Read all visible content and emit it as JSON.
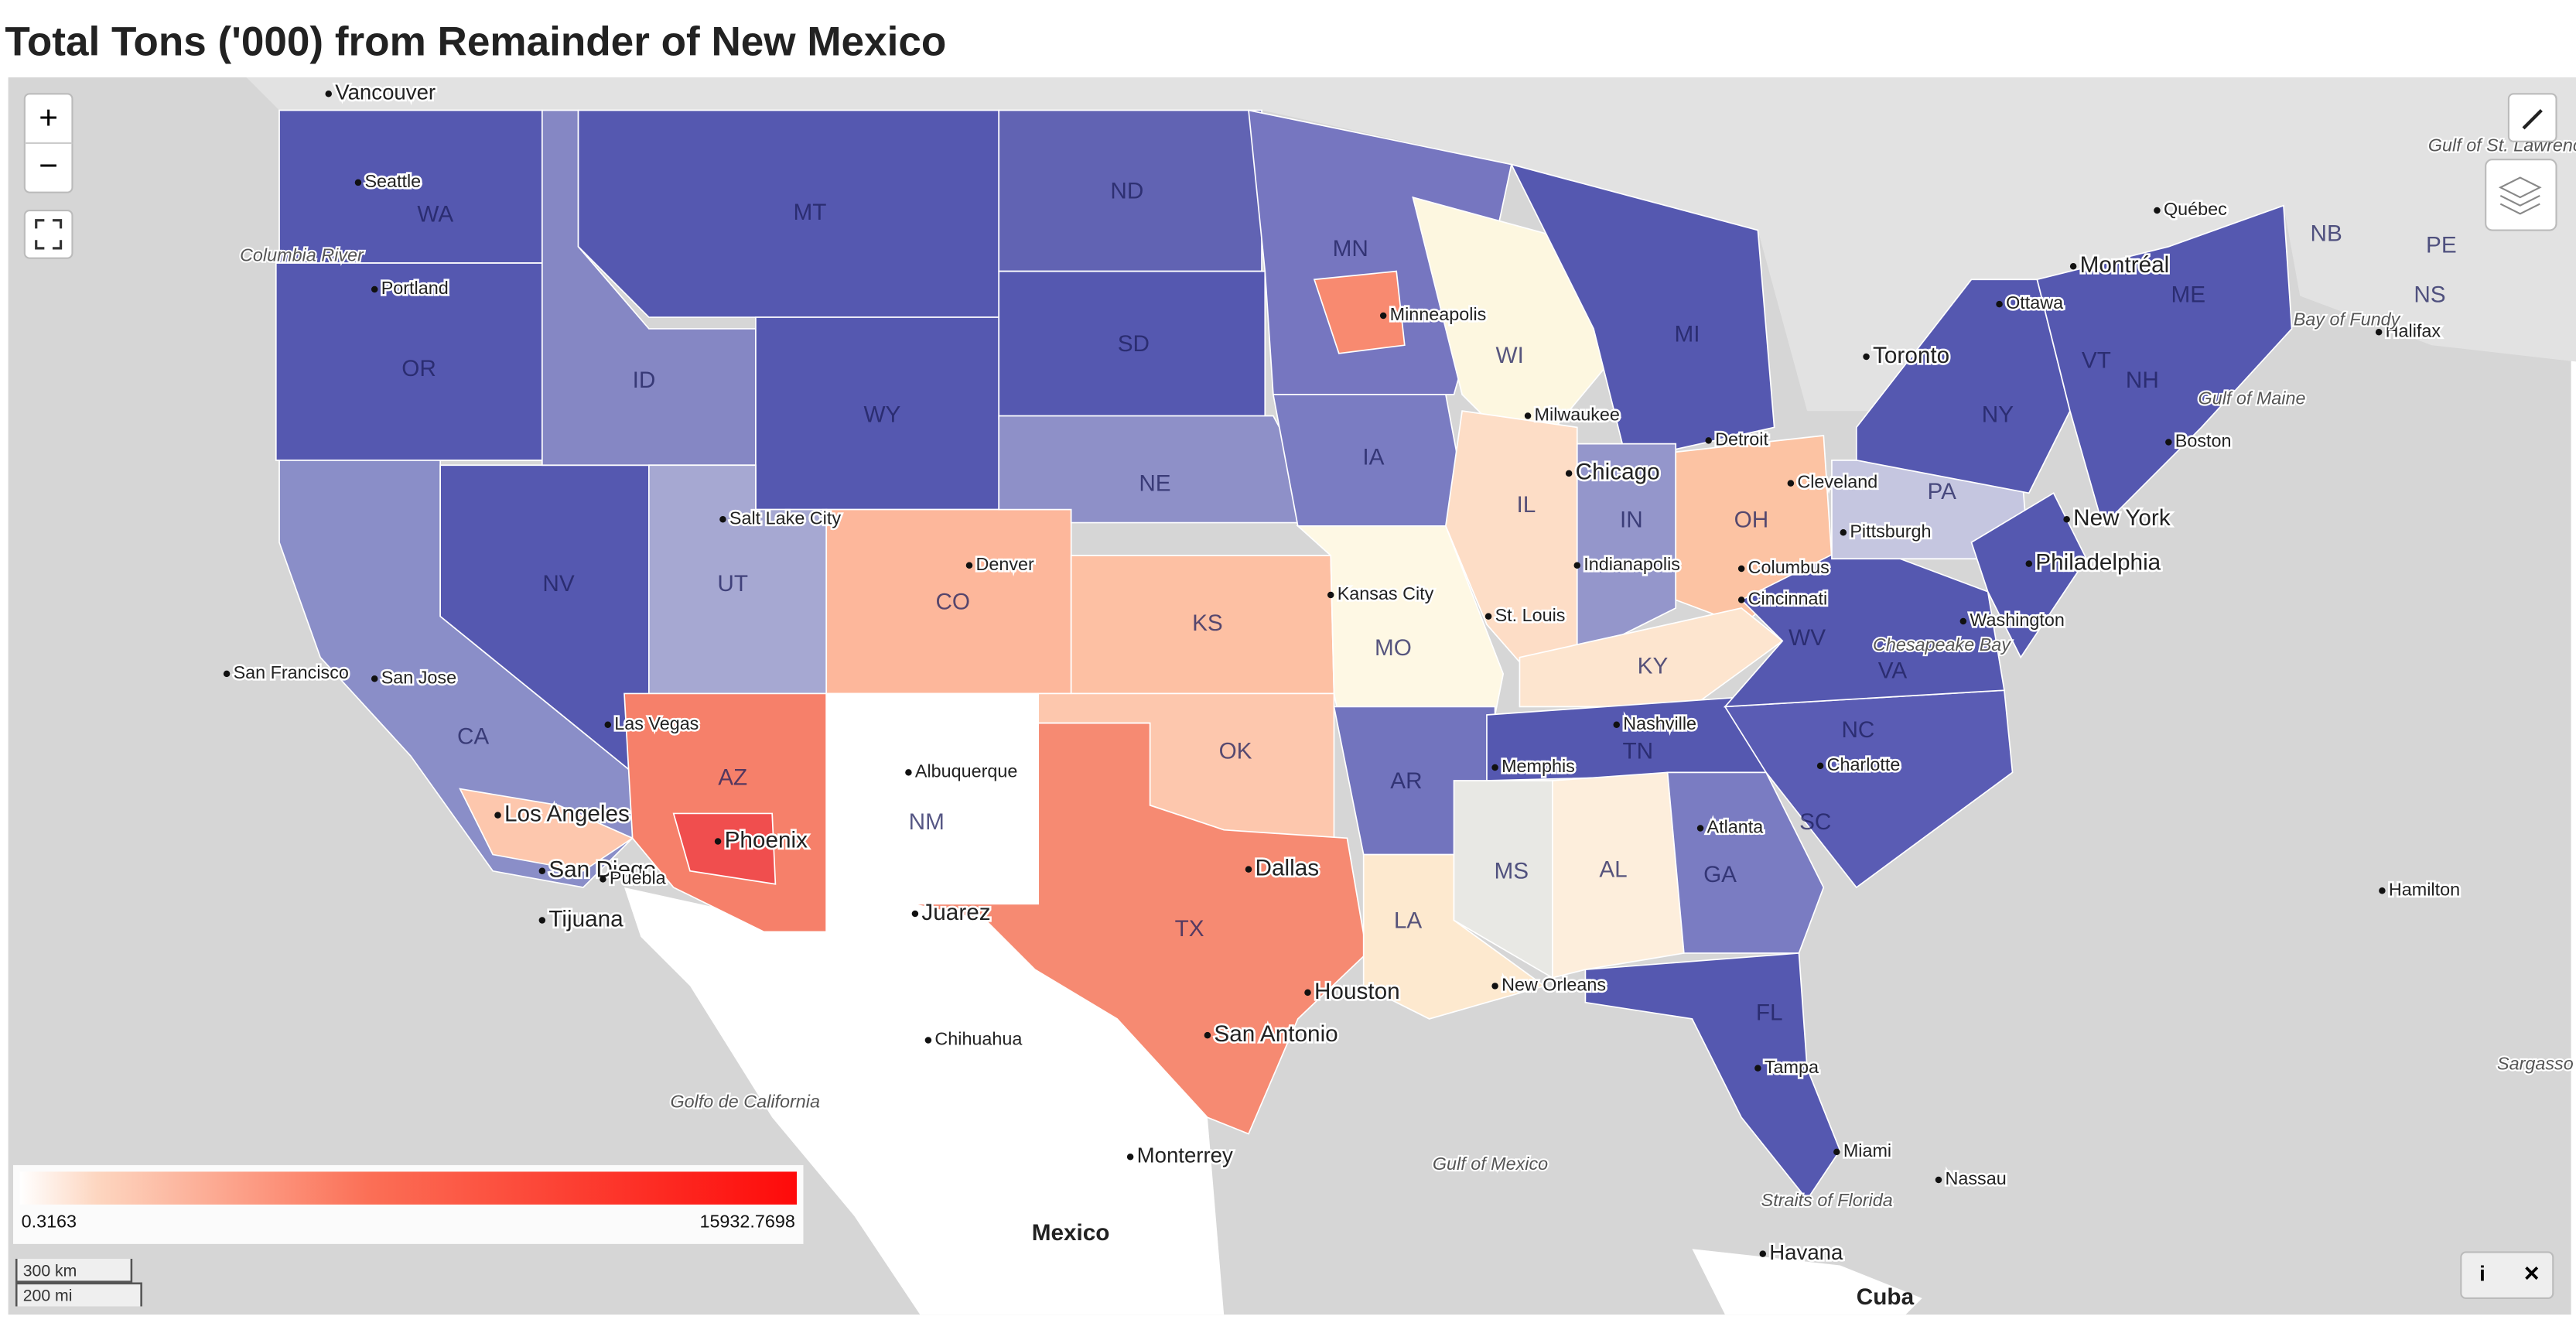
{
  "title": "Total Tons ('000) from Remainder of New Mexico",
  "legend": {
    "min": "0.3163",
    "max": "15932.7698"
  },
  "scale": {
    "km": "300 km",
    "mi": "200 mi"
  },
  "controls": {
    "zoom_in": "+",
    "zoom_out": "−",
    "info": "i",
    "close": "×"
  },
  "map": {
    "states": [
      "WA",
      "OR",
      "CA",
      "NV",
      "ID",
      "MT",
      "WY",
      "UT",
      "AZ",
      "CO",
      "NM",
      "ND",
      "SD",
      "NE",
      "KS",
      "OK",
      "TX",
      "MN",
      "IA",
      "MO",
      "AR",
      "LA",
      "WI",
      "IL",
      "MI",
      "IN",
      "OH",
      "KY",
      "TN",
      "MS",
      "AL",
      "GA",
      "FL",
      "SC",
      "NC",
      "VA",
      "WV",
      "PA",
      "NY",
      "VT",
      "NH",
      "ME",
      "NB",
      "PE",
      "NS"
    ],
    "cities": [
      "Vancouver",
      "Seattle",
      "Portland",
      "San Francisco",
      "San Jose",
      "Los Angeles",
      "San Diego",
      "Tijuana",
      "Puebla",
      "Las Vegas",
      "Salt Lake City",
      "Phoenix",
      "Albuquerque",
      "Juarez",
      "Denver",
      "Chihuahua",
      "Monterrey",
      "Mexico",
      "Dallas",
      "San Antonio",
      "Houston",
      "Kansas City",
      "St. Louis",
      "Memphis",
      "Nashville",
      "Minneapolis",
      "Milwaukee",
      "Chicago",
      "Indianapolis",
      "Detroit",
      "Cleveland",
      "Columbus",
      "Cincinnati",
      "Pittsburgh",
      "Atlanta",
      "Charlotte",
      "New Orleans",
      "Tampa",
      "Miami",
      "Nassau",
      "Havana",
      "Cuba",
      "Washington",
      "New York",
      "Philadelphia",
      "Boston",
      "Toronto",
      "Ottawa",
      "Montréal",
      "Québec",
      "Halifax",
      "Hamilton"
    ],
    "water": [
      "Columbia River",
      "Gulf of St. Lawrence",
      "Bay of Fundy",
      "Gulf of Maine",
      "Chesapeake Bay",
      "Golfo de California",
      "Gulf of Mexico",
      "Straits of Florida",
      "Sargasso"
    ]
  }
}
